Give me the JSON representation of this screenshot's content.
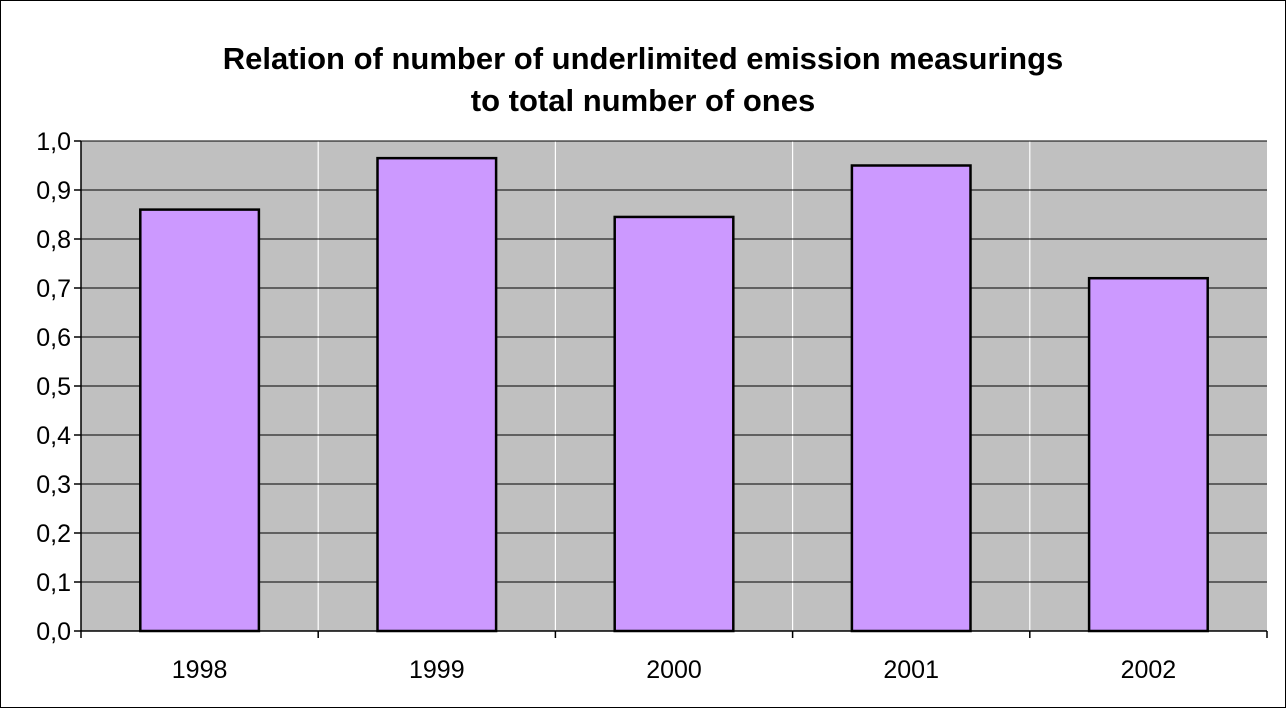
{
  "chart_data": {
    "type": "bar",
    "title_lines": [
      "Relation of number of underlimited emission measurings",
      "to total number of ones"
    ],
    "categories": [
      "1998",
      "1999",
      "2000",
      "2001",
      "2002"
    ],
    "values": [
      0.86,
      0.965,
      0.845,
      0.95,
      0.72
    ],
    "ylim": [
      0,
      1.0
    ],
    "yticks": [
      "0,0",
      "0,1",
      "0,2",
      "0,3",
      "0,4",
      "0,5",
      "0,6",
      "0,7",
      "0,8",
      "0,9",
      "1,0"
    ],
    "grid": true,
    "legend": "none",
    "colors": {
      "bar_fill": "#cc99ff",
      "bar_stroke": "#000000",
      "plot_background": "#c0c0c0",
      "gridline_vertical": "#ffffff",
      "gridline_horizontal": "#000000"
    }
  }
}
